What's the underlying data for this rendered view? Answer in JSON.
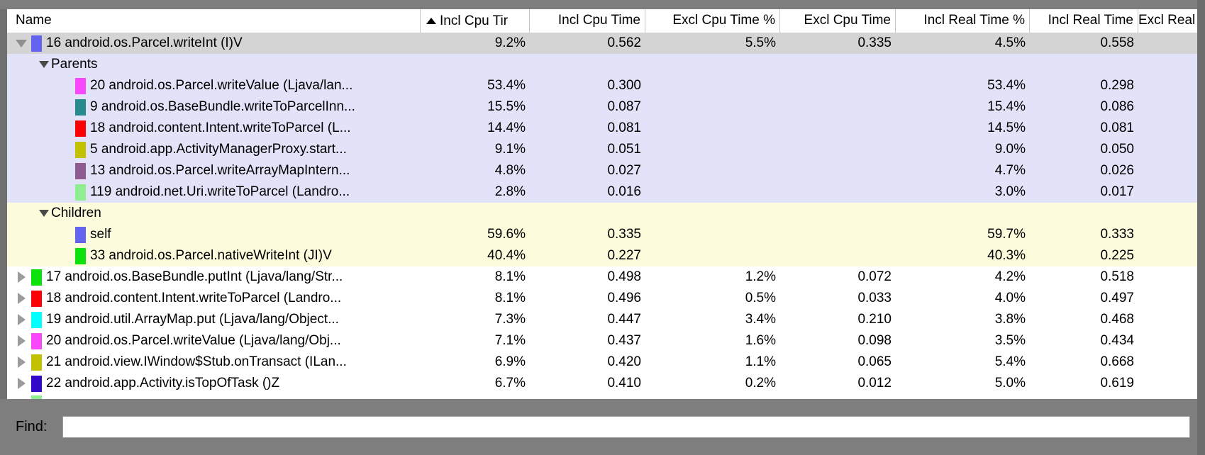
{
  "colors": {
    "frame": "#7e7e7e",
    "selected_row_bg": "#d4d4d4",
    "parents_section_bg": "#e2e2f8",
    "children_section_bg": "#fcfbdb"
  },
  "table": {
    "columns": [
      {
        "label": "Name",
        "align": "left"
      },
      {
        "label": "Incl Cpu Tir",
        "sorted": "ascending"
      },
      {
        "label": "Incl Cpu Time"
      },
      {
        "label": "Excl Cpu Time %"
      },
      {
        "label": "Excl Cpu Time"
      },
      {
        "label": "Incl Real Time %"
      },
      {
        "label": "Incl Real Time"
      },
      {
        "label": "Excl Real"
      }
    ],
    "rows": [
      {
        "kind": "method",
        "level": "top",
        "state": "expanded",
        "selected": true,
        "bg": "selected",
        "icon": "#6463ef",
        "name": "16 android.os.Parcel.writeInt (I)V",
        "values": [
          "9.2%",
          "0.562",
          "5.5%",
          "0.335",
          "4.5%",
          "0.558"
        ]
      },
      {
        "kind": "section",
        "bg": "parents",
        "label": "Parents"
      },
      {
        "kind": "method",
        "level": "sub",
        "bg": "parents",
        "icon": "#f947fb",
        "name": "20 android.os.Parcel.writeValue (Ljava/lan...",
        "values": [
          "53.4%",
          "0.300",
          "",
          "",
          "53.4%",
          "0.298"
        ]
      },
      {
        "kind": "method",
        "level": "sub",
        "bg": "parents",
        "icon": "#278b8b",
        "name": "9 android.os.BaseBundle.writeToParcelInn...",
        "values": [
          "15.5%",
          "0.087",
          "",
          "",
          "15.4%",
          "0.086"
        ]
      },
      {
        "kind": "method",
        "level": "sub",
        "bg": "parents",
        "icon": "#fb0207",
        "name": "18 android.content.Intent.writeToParcel (L...",
        "values": [
          "14.4%",
          "0.081",
          "",
          "",
          "14.5%",
          "0.081"
        ]
      },
      {
        "kind": "method",
        "level": "sub",
        "bg": "parents",
        "icon": "#c2c102",
        "name": "5 android.app.ActivityManagerProxy.start...",
        "values": [
          "9.1%",
          "0.051",
          "",
          "",
          "9.0%",
          "0.050"
        ]
      },
      {
        "kind": "method",
        "level": "sub",
        "bg": "parents",
        "icon": "#8e5c8e",
        "name": "13 android.os.Parcel.writeArrayMapIntern...",
        "values": [
          "4.8%",
          "0.027",
          "",
          "",
          "4.7%",
          "0.026"
        ]
      },
      {
        "kind": "method",
        "level": "sub",
        "bg": "parents",
        "icon": "#90ee90",
        "name": "119 android.net.Uri.writeToParcel (Landro...",
        "values": [
          "2.8%",
          "0.016",
          "",
          "",
          "3.0%",
          "0.017"
        ]
      },
      {
        "kind": "section",
        "bg": "children",
        "label": "Children"
      },
      {
        "kind": "method",
        "level": "sub",
        "bg": "children",
        "icon": "#6463ef",
        "name": "self",
        "values": [
          "59.6%",
          "0.335",
          "",
          "",
          "59.7%",
          "0.333"
        ]
      },
      {
        "kind": "method",
        "level": "sub",
        "bg": "children",
        "icon": "#0ce10b",
        "name": "33 android.os.Parcel.nativeWriteInt (JI)V",
        "values": [
          "40.4%",
          "0.227",
          "",
          "",
          "40.3%",
          "0.225"
        ]
      },
      {
        "kind": "method",
        "level": "top",
        "state": "collapsed",
        "bg": "white",
        "icon": "#0ce10b",
        "name": "17 android.os.BaseBundle.putInt (Ljava/lang/Str...",
        "values": [
          "8.1%",
          "0.498",
          "1.2%",
          "0.072",
          "4.2%",
          "0.518"
        ]
      },
      {
        "kind": "method",
        "level": "top",
        "state": "collapsed",
        "bg": "white",
        "icon": "#fb0207",
        "name": "18 android.content.Intent.writeToParcel (Landro...",
        "values": [
          "8.1%",
          "0.496",
          "0.5%",
          "0.033",
          "4.0%",
          "0.497"
        ]
      },
      {
        "kind": "method",
        "level": "top",
        "state": "collapsed",
        "bg": "white",
        "icon": "#02feff",
        "name": "19 android.util.ArrayMap.put (Ljava/lang/Object...",
        "values": [
          "7.3%",
          "0.447",
          "3.4%",
          "0.210",
          "3.8%",
          "0.468"
        ]
      },
      {
        "kind": "method",
        "level": "top",
        "state": "collapsed",
        "bg": "white",
        "icon": "#f947fb",
        "name": "20 android.os.Parcel.writeValue (Ljava/lang/Obj...",
        "values": [
          "7.1%",
          "0.437",
          "1.6%",
          "0.098",
          "3.5%",
          "0.434"
        ]
      },
      {
        "kind": "method",
        "level": "top",
        "state": "collapsed",
        "bg": "white",
        "icon": "#c2c102",
        "name": "21 android.view.IWindow$Stub.onTransact (ILan...",
        "values": [
          "6.9%",
          "0.420",
          "1.1%",
          "0.065",
          "5.4%",
          "0.668"
        ]
      },
      {
        "kind": "method",
        "level": "top",
        "state": "collapsed",
        "bg": "white",
        "icon": "#3209c9",
        "name": "22 android.app.Activity.isTopOfTask ()Z",
        "values": [
          "6.7%",
          "0.410",
          "0.2%",
          "0.012",
          "5.0%",
          "0.619"
        ]
      },
      {
        "kind": "partial",
        "bg": "white",
        "icon": "#90ee90"
      }
    ]
  },
  "find": {
    "label": "Find:",
    "value": ""
  }
}
